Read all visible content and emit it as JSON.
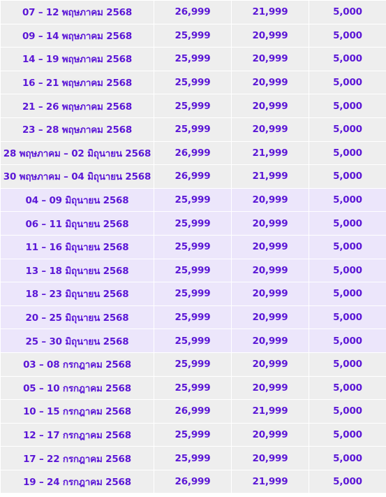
{
  "table": {
    "rows": [
      {
        "date": "07 – 12 พฤษภาคม 2568",
        "price1": "26,999",
        "price2": "21,999",
        "price3": "5,000",
        "shade": "gray"
      },
      {
        "date": "09 – 14 พฤษภาคม 2568",
        "price1": "25,999",
        "price2": "20,999",
        "price3": "5,000",
        "shade": "gray"
      },
      {
        "date": "14 – 19 พฤษภาคม 2568",
        "price1": "25,999",
        "price2": "20,999",
        "price3": "5,000",
        "shade": "gray"
      },
      {
        "date": "16 – 21 พฤษภาคม 2568",
        "price1": "25,999",
        "price2": "20,999",
        "price3": "5,000",
        "shade": "gray"
      },
      {
        "date": "21 – 26 พฤษภาคม 2568",
        "price1": "25,999",
        "price2": "20,999",
        "price3": "5,000",
        "shade": "gray"
      },
      {
        "date": "23 – 28 พฤษภาคม 2568",
        "price1": "25,999",
        "price2": "20,999",
        "price3": "5,000",
        "shade": "gray"
      },
      {
        "date": "28 พฤษภาคม – 02 มิถุนายน 2568",
        "price1": "26,999",
        "price2": "21,999",
        "price3": "5,000",
        "shade": "gray"
      },
      {
        "date": "30 พฤษภาคม – 04 มิถุนายน 2568",
        "price1": "26,999",
        "price2": "21,999",
        "price3": "5,000",
        "shade": "gray"
      },
      {
        "date": "04 – 09 มิถุนายน 2568",
        "price1": "25,999",
        "price2": "20,999",
        "price3": "5,000",
        "shade": "lav"
      },
      {
        "date": "06 – 11 มิถุนายน 2568",
        "price1": "25,999",
        "price2": "20,999",
        "price3": "5,000",
        "shade": "lav"
      },
      {
        "date": "11 – 16 มิถุนายน 2568",
        "price1": "25,999",
        "price2": "20,999",
        "price3": "5,000",
        "shade": "lav"
      },
      {
        "date": "13 – 18 มิถุนายน 2568",
        "price1": "25,999",
        "price2": "20,999",
        "price3": "5,000",
        "shade": "lav"
      },
      {
        "date": "18 – 23 มิถุนายน 2568",
        "price1": "25,999",
        "price2": "20,999",
        "price3": "5,000",
        "shade": "lav"
      },
      {
        "date": "20 – 25 มิถุนายน 2568",
        "price1": "25,999",
        "price2": "20,999",
        "price3": "5,000",
        "shade": "lav"
      },
      {
        "date": "25 – 30 มิถุนายน 2568",
        "price1": "25,999",
        "price2": "20,999",
        "price3": "5,000",
        "shade": "lav"
      },
      {
        "date": "03 – 08 กรกฎาคม 2568",
        "price1": "25,999",
        "price2": "20,999",
        "price3": "5,000",
        "shade": "gray"
      },
      {
        "date": "05 – 10 กรกฎาคม 2568",
        "price1": "25,999",
        "price2": "20,999",
        "price3": "5,000",
        "shade": "gray"
      },
      {
        "date": "10 – 15 กรกฎาคม 2568",
        "price1": "26,999",
        "price2": "21,999",
        "price3": "5,000",
        "shade": "gray"
      },
      {
        "date": "12 – 17 กรกฎาคม 2568",
        "price1": "25,999",
        "price2": "20,999",
        "price3": "5,000",
        "shade": "gray"
      },
      {
        "date": "17 – 22 กรกฎาคม 2568",
        "price1": "25,999",
        "price2": "20,999",
        "price3": "5,000",
        "shade": "gray"
      },
      {
        "date": "19 – 24 กรกฎาคม 2568",
        "price1": "26,999",
        "price2": "21,999",
        "price3": "5,000",
        "shade": "gray"
      }
    ]
  }
}
